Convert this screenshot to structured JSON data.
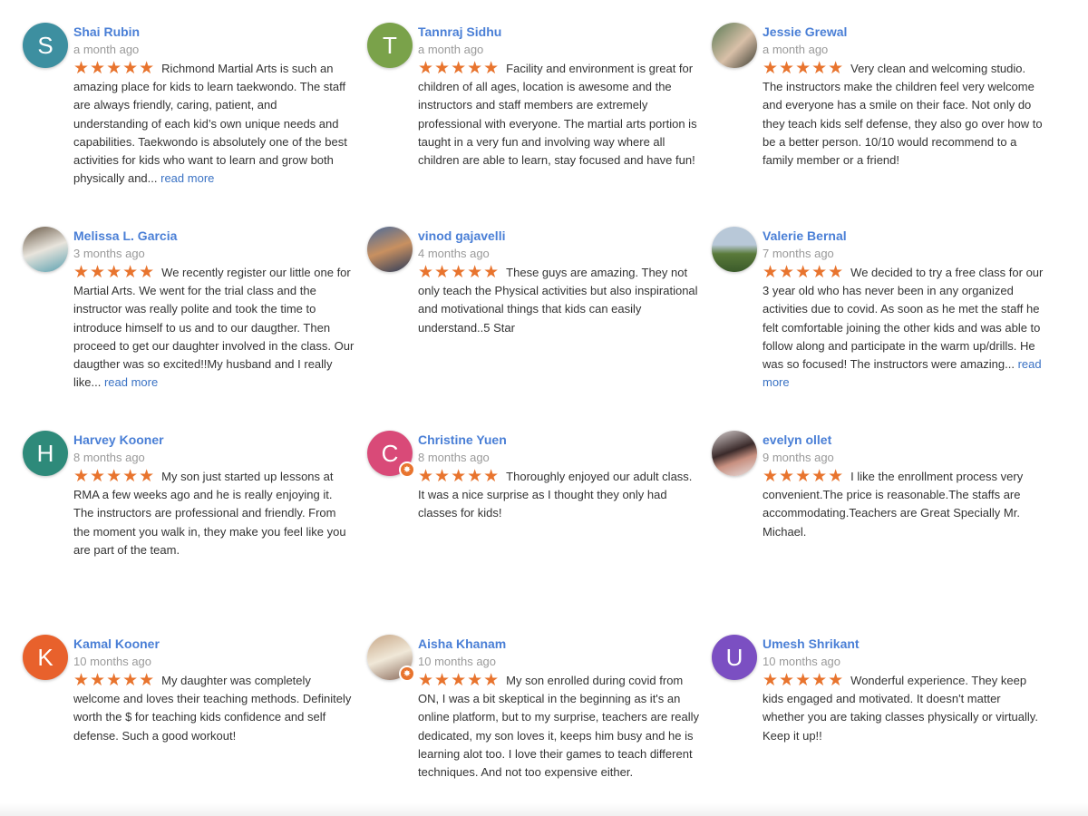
{
  "star_color": "#e8742e",
  "name_color": "#4a7fd6",
  "reviews": [
    {
      "name": "Shai Rubin",
      "time": "a month ago",
      "rating": 5,
      "avatar": {
        "letter": "S",
        "color": "#3d8fa0"
      },
      "text": "Richmond Martial Arts is such an amazing place for kids to learn taekwondo. The staff are always friendly, caring, patient, and understanding of each kid’s own unique needs and capabilities. Taekwondo is absolutely one of the best activities for kids who want to learn and grow both physically and...",
      "more": "read more"
    },
    {
      "name": "Tannraj Sidhu",
      "time": "a month ago",
      "rating": 5,
      "avatar": {
        "letter": "T",
        "color": "#7aa24a"
      },
      "text": "Facility and environment is great for children of all ages, location is awesome and the instructors and staff members are extremely professional with everyone. The martial arts portion is taught in a very fun and involving way where all children are able to learn, stay focused and have fun!"
    },
    {
      "name": "Jessie Grewal",
      "time": "a month ago",
      "rating": 5,
      "avatar": {
        "photo": "linear-gradient(135deg,#5a7a55,#d8c0a8 55%,#3a3a30)"
      },
      "text": "Very clean and welcoming studio. The instructors make the children feel very welcome and everyone has a smile on their face. Not only do they teach kids self defense, they also go over how to be a better person. 10/10 would recommend to a family member or a friend!"
    },
    {
      "name": "Melissa L. Garcia",
      "time": "3 months ago",
      "rating": 5,
      "avatar": {
        "photo": "linear-gradient(160deg,#6a5a48,#e8e4dc 50%,#5aa0b0)"
      },
      "text": "We recently register our little one for Martial Arts. We went for the trial class and the instructor was really polite and took the time to introduce himself to us and to our daugther. Then proceed to get our daughter involved in the class. Our daugther was so excited!!My husband and I really like...",
      "more": "read more"
    },
    {
      "name": "vinod gajavelli",
      "time": "4 months ago",
      "rating": 5,
      "avatar": {
        "photo": "linear-gradient(160deg,#4a6a9a,#c89060 50%,#2a3a5a)"
      },
      "text": "These guys are amazing. They not only teach the Physical activities but also inspirational and motivational things that kids can easily understand..5 Star"
    },
    {
      "name": "Valerie Bernal",
      "time": "7 months ago",
      "rating": 5,
      "avatar": {
        "photo": "linear-gradient(180deg,#b8c8d8 40%,#5a7a3a 60%,#3a5a2a)"
      },
      "text": "We decided to try a free class for our 3 year old who has never been in any organized activities due to covid. As soon as he met the staff he felt comfortable joining the other kids and was able to follow along and participate in the warm up/drills. He was so focused! The instructors were amazing...",
      "more": "read more"
    },
    {
      "name": "Harvey Kooner",
      "time": "8 months ago",
      "rating": 5,
      "avatar": {
        "letter": "H",
        "color": "#2e8a7a"
      },
      "text": "My son just started up lessons at RMA a few weeks ago and he is really enjoying it. The instructors are professional and friendly.  From the moment you walk in, they make you feel like you are part of the team."
    },
    {
      "name": "Christine Yuen",
      "time": "8 months ago",
      "rating": 5,
      "avatar": {
        "letter": "C",
        "color": "#d94a78",
        "badge": true
      },
      "text": "Thoroughly enjoyed our adult class. It was a nice surprise as I thought they only had classes for kids!"
    },
    {
      "name": "evelyn ollet",
      "time": "9 months ago",
      "rating": 5,
      "avatar": {
        "photo": "linear-gradient(160deg,#d8d0d0,#3a2a2a 45%,#c89080 65%,#e8e0e0)"
      },
      "text": "I like the enrollment process very convenient.The price is reasonable.The staffs are accommodating.Teachers are Great Specially Mr. Michael."
    },
    {
      "name": "Kamal Kooner",
      "time": "10 months ago",
      "rating": 5,
      "avatar": {
        "letter": "K",
        "color": "#e8612c"
      },
      "text": "My daughter was completely welcome and loves their teaching methods. Definitely worth the $ for teaching kids confidence and self defense. Such a good workout!"
    },
    {
      "name": "Aisha Khanam",
      "time": "10 months ago",
      "rating": 5,
      "avatar": {
        "photo": "linear-gradient(160deg,#c8a888,#f0e8d8 50%,#8a6a5a)",
        "badge": true
      },
      "text": "My son enrolled during covid from ON, I was a bit skeptical in the beginning as it's an online platform, but to my surprise, teachers are really dedicated, my son loves it, keeps him busy and he is learning alot too. I love their games to teach different techniques. And not too expensive either."
    },
    {
      "name": "Umesh Shrikant",
      "time": "10 months ago",
      "rating": 5,
      "avatar": {
        "letter": "U",
        "color": "#7b4fc2"
      },
      "text": "Wonderful experience. They keep kids engaged and motivated. It doesn't matter whether you are taking classes physically or virtually. Keep it up!!"
    }
  ]
}
